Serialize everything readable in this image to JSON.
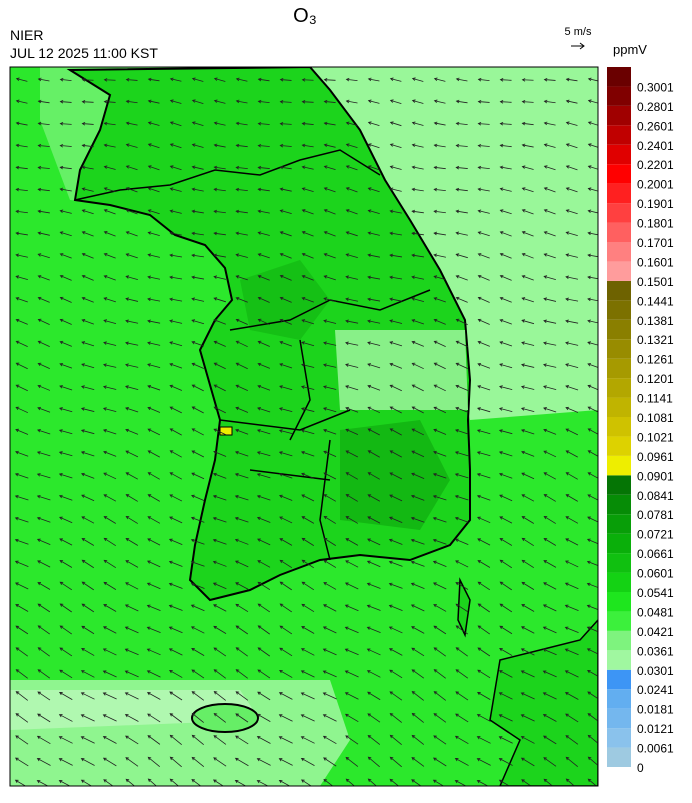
{
  "header": {
    "title": "O₃",
    "agency": "NIER",
    "timestamp": "JUL 12 2025 11:00 KST",
    "vector_scale": "5 m/s"
  },
  "legend": {
    "unit": "ppmV",
    "ticks": [
      0,
      0.0061,
      0.0121,
      0.0181,
      0.0241,
      0.0301,
      0.0361,
      0.0421,
      0.0481,
      0.0541,
      0.0601,
      0.0661,
      0.0721,
      0.0781,
      0.0841,
      0.0901,
      0.0961,
      0.1021,
      0.1081,
      0.1141,
      0.1201,
      0.1261,
      0.1321,
      0.1381,
      0.1441,
      0.1501,
      0.1601,
      0.1701,
      0.1801,
      0.1901,
      0.2001,
      0.2201,
      0.2401,
      0.2601,
      0.2801,
      0.3001
    ],
    "colors": [
      "#9ecae1",
      "#8ac2ec",
      "#74b7ee",
      "#62aef0",
      "#3d95f5",
      "#a0f7a0",
      "#7ef37e",
      "#3cf03c",
      "#1ee61e",
      "#14d214",
      "#10c010",
      "#0aaf0a",
      "#089e08",
      "#068c06",
      "#057505",
      "#eeee00",
      "#ddd200",
      "#cfc200",
      "#c0b400",
      "#b3a700",
      "#a69a00",
      "#988c00",
      "#8a7f00",
      "#7c7100",
      "#6e6200",
      "#ff9c9c",
      "#ff8080",
      "#ff6060",
      "#ff4040",
      "#ff2020",
      "#ff0000",
      "#e00000",
      "#c00000",
      "#a00000",
      "#800000",
      "#6a0000"
    ]
  }
}
